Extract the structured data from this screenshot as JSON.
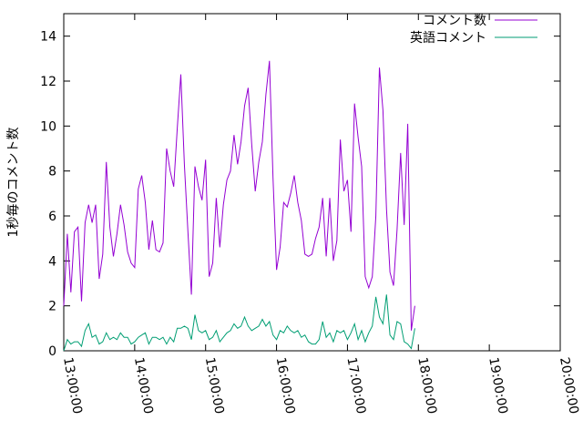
{
  "chart_data": {
    "type": "line",
    "title": "",
    "xlabel": "",
    "ylabel": "1秒毎のコメント数",
    "xlim": [
      "13:00:00",
      "20:00:00"
    ],
    "ylim": [
      0,
      15
    ],
    "xticks": [
      "13:00:00",
      "14:00:00",
      "15:00:00",
      "16:00:00",
      "17:00:00",
      "18:00:00",
      "19:00:00",
      "20:00:00"
    ],
    "yticks": [
      "0",
      "2",
      "4",
      "6",
      "8",
      "10",
      "12",
      "14"
    ],
    "grid": false,
    "legend_position": "top-right",
    "series": [
      {
        "name": "コメント数",
        "color": "#9400d3",
        "points": [
          [
            "13:00:00",
            2.0
          ],
          [
            "13:03:00",
            5.2
          ],
          [
            "13:06:00",
            2.6
          ],
          [
            "13:09:00",
            5.3
          ],
          [
            "13:12:00",
            5.5
          ],
          [
            "13:15:00",
            2.2
          ],
          [
            "13:18:00",
            5.7
          ],
          [
            "13:21:00",
            6.5
          ],
          [
            "13:24:00",
            5.7
          ],
          [
            "13:27:00",
            6.5
          ],
          [
            "13:30:00",
            3.2
          ],
          [
            "13:33:00",
            4.3
          ],
          [
            "13:36:00",
            8.4
          ],
          [
            "13:39:00",
            5.5
          ],
          [
            "13:42:00",
            4.2
          ],
          [
            "13:45:00",
            5.2
          ],
          [
            "13:48:00",
            6.5
          ],
          [
            "13:51:00",
            5.6
          ],
          [
            "13:54:00",
            4.4
          ],
          [
            "13:57:00",
            3.9
          ],
          [
            "14:00:00",
            3.7
          ],
          [
            "14:03:00",
            7.2
          ],
          [
            "14:06:00",
            7.8
          ],
          [
            "14:09:00",
            6.6
          ],
          [
            "14:12:00",
            4.5
          ],
          [
            "14:15:00",
            5.8
          ],
          [
            "14:18:00",
            4.5
          ],
          [
            "14:21:00",
            4.4
          ],
          [
            "14:24:00",
            4.8
          ],
          [
            "14:27:00",
            9.0
          ],
          [
            "14:30:00",
            8.0
          ],
          [
            "14:33:00",
            7.3
          ],
          [
            "14:36:00",
            9.9
          ],
          [
            "14:39:00",
            12.3
          ],
          [
            "14:42:00",
            8.3
          ],
          [
            "14:45:00",
            5.3
          ],
          [
            "14:48:00",
            2.5
          ],
          [
            "14:51:00",
            8.2
          ],
          [
            "14:54:00",
            7.3
          ],
          [
            "14:57:00",
            6.7
          ],
          [
            "15:00:00",
            8.5
          ],
          [
            "15:03:00",
            3.3
          ],
          [
            "15:06:00",
            3.9
          ],
          [
            "15:09:00",
            6.8
          ],
          [
            "15:12:00",
            4.6
          ],
          [
            "15:15:00",
            6.5
          ],
          [
            "15:18:00",
            7.6
          ],
          [
            "15:21:00",
            8.0
          ],
          [
            "15:24:00",
            9.6
          ],
          [
            "15:27:00",
            8.3
          ],
          [
            "15:30:00",
            9.3
          ],
          [
            "15:33:00",
            10.9
          ],
          [
            "15:36:00",
            11.7
          ],
          [
            "15:39:00",
            9.2
          ],
          [
            "15:42:00",
            7.1
          ],
          [
            "15:45:00",
            8.4
          ],
          [
            "15:48:00",
            9.3
          ],
          [
            "15:51:00",
            11.4
          ],
          [
            "15:54:00",
            12.9
          ],
          [
            "15:57:00",
            7.7
          ],
          [
            "16:00:00",
            3.6
          ],
          [
            "16:03:00",
            4.6
          ],
          [
            "16:06:00",
            6.6
          ],
          [
            "16:09:00",
            6.4
          ],
          [
            "16:12:00",
            7.0
          ],
          [
            "16:15:00",
            7.8
          ],
          [
            "16:18:00",
            6.6
          ],
          [
            "16:21:00",
            5.8
          ],
          [
            "16:24:00",
            4.3
          ],
          [
            "16:27:00",
            4.2
          ],
          [
            "16:30:00",
            4.3
          ],
          [
            "16:33:00",
            5.0
          ],
          [
            "16:36:00",
            5.5
          ],
          [
            "16:39:00",
            6.8
          ],
          [
            "16:42:00",
            4.2
          ],
          [
            "16:45:00",
            6.8
          ],
          [
            "16:48:00",
            4.0
          ],
          [
            "16:51:00",
            4.9
          ],
          [
            "16:54:00",
            9.4
          ],
          [
            "16:57:00",
            7.1
          ],
          [
            "17:00:00",
            7.6
          ],
          [
            "17:03:00",
            5.3
          ],
          [
            "17:06:00",
            11.0
          ],
          [
            "17:09:00",
            9.5
          ],
          [
            "17:12:00",
            8.2
          ],
          [
            "17:15:00",
            3.3
          ],
          [
            "17:18:00",
            2.8
          ],
          [
            "17:21:00",
            3.3
          ],
          [
            "17:24:00",
            6.0
          ],
          [
            "17:27:00",
            12.6
          ],
          [
            "17:30:00",
            10.7
          ],
          [
            "17:33:00",
            6.3
          ],
          [
            "17:36:00",
            3.5
          ],
          [
            "17:39:00",
            2.9
          ],
          [
            "17:42:00",
            5.4
          ],
          [
            "17:45:00",
            8.8
          ],
          [
            "17:48:00",
            5.6
          ],
          [
            "17:51:00",
            10.1
          ],
          [
            "17:54:00",
            0.9
          ],
          [
            "17:57:00",
            2.0
          ]
        ]
      },
      {
        "name": "英語コメント",
        "color": "#009e73",
        "points": [
          [
            "13:00:00",
            0.0
          ],
          [
            "13:03:00",
            0.5
          ],
          [
            "13:06:00",
            0.3
          ],
          [
            "13:09:00",
            0.4
          ],
          [
            "13:12:00",
            0.4
          ],
          [
            "13:15:00",
            0.2
          ],
          [
            "13:18:00",
            0.9
          ],
          [
            "13:21:00",
            1.2
          ],
          [
            "13:24:00",
            0.6
          ],
          [
            "13:27:00",
            0.7
          ],
          [
            "13:30:00",
            0.3
          ],
          [
            "13:33:00",
            0.4
          ],
          [
            "13:36:00",
            0.8
          ],
          [
            "13:39:00",
            0.5
          ],
          [
            "13:42:00",
            0.6
          ],
          [
            "13:45:00",
            0.5
          ],
          [
            "13:48:00",
            0.8
          ],
          [
            "13:51:00",
            0.6
          ],
          [
            "13:54:00",
            0.6
          ],
          [
            "13:57:00",
            0.3
          ],
          [
            "14:00:00",
            0.4
          ],
          [
            "14:03:00",
            0.6
          ],
          [
            "14:06:00",
            0.7
          ],
          [
            "14:09:00",
            0.8
          ],
          [
            "14:12:00",
            0.3
          ],
          [
            "14:15:00",
            0.6
          ],
          [
            "14:18:00",
            0.6
          ],
          [
            "14:21:00",
            0.5
          ],
          [
            "14:24:00",
            0.6
          ],
          [
            "14:27:00",
            0.3
          ],
          [
            "14:30:00",
            0.6
          ],
          [
            "14:33:00",
            0.4
          ],
          [
            "14:36:00",
            1.0
          ],
          [
            "14:39:00",
            1.0
          ],
          [
            "14:42:00",
            1.1
          ],
          [
            "14:45:00",
            1.0
          ],
          [
            "14:48:00",
            0.5
          ],
          [
            "14:51:00",
            1.6
          ],
          [
            "14:54:00",
            0.9
          ],
          [
            "14:57:00",
            0.8
          ],
          [
            "15:00:00",
            0.9
          ],
          [
            "15:03:00",
            0.5
          ],
          [
            "15:06:00",
            0.6
          ],
          [
            "15:09:00",
            0.9
          ],
          [
            "15:12:00",
            0.4
          ],
          [
            "15:15:00",
            0.6
          ],
          [
            "15:18:00",
            0.8
          ],
          [
            "15:21:00",
            0.9
          ],
          [
            "15:24:00",
            1.2
          ],
          [
            "15:27:00",
            1.0
          ],
          [
            "15:30:00",
            1.1
          ],
          [
            "15:33:00",
            1.5
          ],
          [
            "15:36:00",
            1.1
          ],
          [
            "15:39:00",
            0.9
          ],
          [
            "15:42:00",
            1.0
          ],
          [
            "15:45:00",
            1.1
          ],
          [
            "15:48:00",
            1.4
          ],
          [
            "15:51:00",
            1.1
          ],
          [
            "15:54:00",
            1.3
          ],
          [
            "15:57:00",
            0.7
          ],
          [
            "16:00:00",
            0.5
          ],
          [
            "16:03:00",
            0.9
          ],
          [
            "16:06:00",
            0.8
          ],
          [
            "16:09:00",
            1.1
          ],
          [
            "16:12:00",
            0.9
          ],
          [
            "16:15:00",
            0.8
          ],
          [
            "16:18:00",
            0.9
          ],
          [
            "16:21:00",
            0.6
          ],
          [
            "16:24:00",
            0.7
          ],
          [
            "16:27:00",
            0.4
          ],
          [
            "16:30:00",
            0.3
          ],
          [
            "16:33:00",
            0.3
          ],
          [
            "16:36:00",
            0.5
          ],
          [
            "16:39:00",
            1.3
          ],
          [
            "16:42:00",
            0.6
          ],
          [
            "16:45:00",
            0.8
          ],
          [
            "16:48:00",
            0.4
          ],
          [
            "16:51:00",
            0.9
          ],
          [
            "16:54:00",
            0.8
          ],
          [
            "16:57:00",
            0.9
          ],
          [
            "17:00:00",
            0.5
          ],
          [
            "17:03:00",
            0.8
          ],
          [
            "17:06:00",
            1.2
          ],
          [
            "17:09:00",
            0.5
          ],
          [
            "17:12:00",
            0.9
          ],
          [
            "17:15:00",
            0.4
          ],
          [
            "17:18:00",
            0.8
          ],
          [
            "17:21:00",
            1.1
          ],
          [
            "17:24:00",
            2.4
          ],
          [
            "17:27:00",
            1.5
          ],
          [
            "17:30:00",
            1.2
          ],
          [
            "17:33:00",
            2.5
          ],
          [
            "17:36:00",
            0.7
          ],
          [
            "17:39:00",
            0.5
          ],
          [
            "17:42:00",
            1.3
          ],
          [
            "17:45:00",
            1.2
          ],
          [
            "17:48:00",
            0.4
          ],
          [
            "17:51:00",
            0.3
          ],
          [
            "17:54:00",
            0.1
          ],
          [
            "17:57:00",
            1.0
          ]
        ]
      }
    ]
  }
}
